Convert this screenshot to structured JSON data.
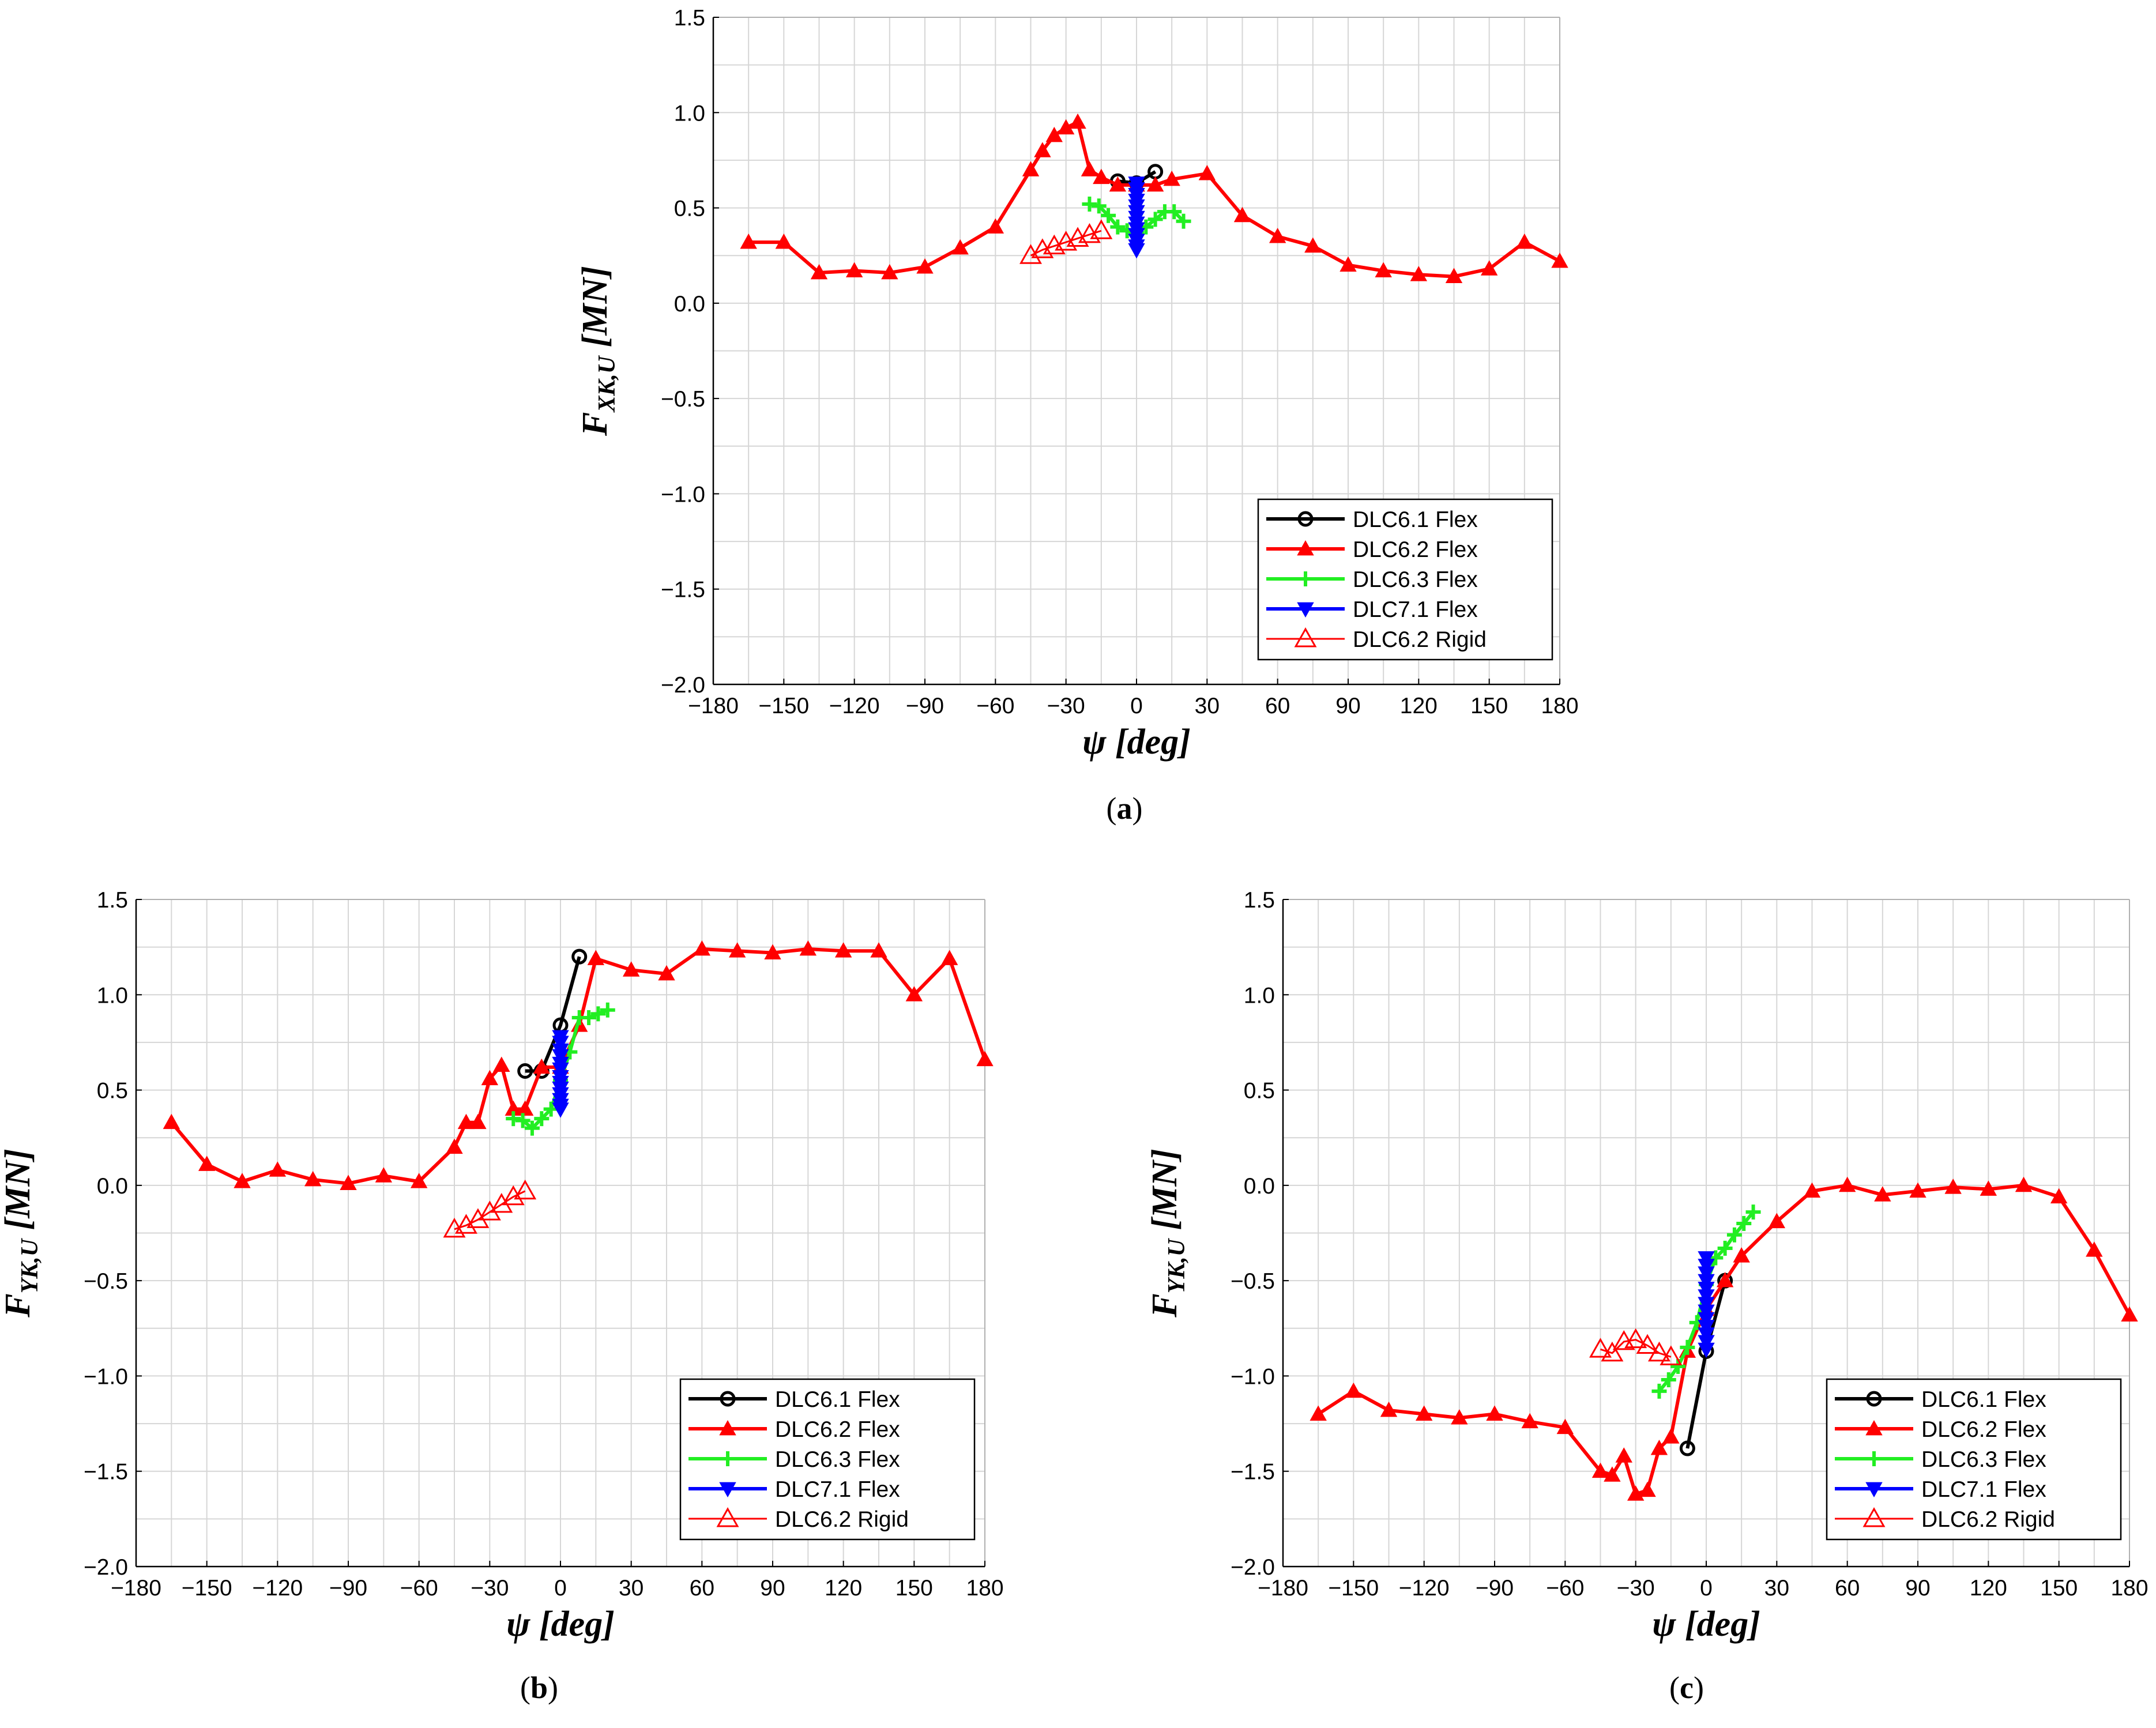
{
  "chart_data": [
    {
      "type": "line",
      "panel_label": "(a)",
      "xlabel": "ψ [deg]",
      "ylabel_main": "F",
      "ylabel_sub": "XK,U",
      "ylabel_unit": "[MN]",
      "xlim": [
        -180,
        180
      ],
      "ylim": [
        -2.0,
        1.5
      ],
      "xticks": [
        -180,
        -150,
        -120,
        -90,
        -60,
        -30,
        0,
        30,
        60,
        90,
        120,
        150,
        180
      ],
      "yticks": [
        -2.0,
        -1.5,
        -1.0,
        -0.5,
        0.0,
        0.5,
        1.0,
        1.5
      ],
      "xtick_labels": [
        "−180",
        "−150",
        "−120",
        "−90",
        "−60",
        "−30",
        "0",
        "30",
        "60",
        "90",
        "120",
        "150",
        "180"
      ],
      "ytick_labels": [
        "−2.0",
        "−1.5",
        "−1.0",
        "−0.5",
        "0.0",
        "0.5",
        "1.0",
        "1.5"
      ],
      "grid": true,
      "legend_position": "bottom-right",
      "series": [
        {
          "name": "DLC6.1 Flex",
          "color": "#000000",
          "marker": "circle",
          "x": [
            -8,
            0,
            8
          ],
          "y": [
            0.64,
            0.63,
            0.69
          ]
        },
        {
          "name": "DLC6.2 Flex",
          "color": "#ff0000",
          "marker": "triangle-up",
          "x": [
            -165,
            -150,
            -135,
            -120,
            -105,
            -90,
            -75,
            -60,
            -45,
            -40,
            -35,
            -30,
            -25,
            -20,
            -15,
            -8,
            0,
            8,
            15,
            30,
            45,
            60,
            75,
            90,
            105,
            120,
            135,
            150,
            165,
            180
          ],
          "y": [
            0.32,
            0.32,
            0.16,
            0.17,
            0.16,
            0.19,
            0.29,
            0.4,
            0.7,
            0.8,
            0.88,
            0.92,
            0.95,
            0.7,
            0.66,
            0.62,
            0.62,
            0.62,
            0.65,
            0.68,
            0.46,
            0.35,
            0.3,
            0.2,
            0.17,
            0.15,
            0.14,
            0.18,
            0.32,
            0.22
          ]
        },
        {
          "name": "DLC6.3 Flex",
          "color": "#22ee22",
          "marker": "plus",
          "x": [
            -20,
            -16,
            -12,
            -8,
            -4,
            0,
            4,
            8,
            12,
            16,
            20
          ],
          "y": [
            0.52,
            0.51,
            0.46,
            0.4,
            0.38,
            0.37,
            0.4,
            0.44,
            0.48,
            0.48,
            0.43
          ]
        },
        {
          "name": "DLC7.1 Flex",
          "color": "#0000ff",
          "marker": "triangle-down",
          "x": [
            0,
            0,
            0,
            0,
            0,
            0,
            0,
            0,
            0,
            0,
            0,
            0,
            0
          ],
          "y": [
            0.63,
            0.6,
            0.57,
            0.54,
            0.51,
            0.48,
            0.45,
            0.42,
            0.39,
            0.36,
            0.33,
            0.3,
            0.28
          ]
        },
        {
          "name": "DLC6.2 Rigid",
          "color": "#ff0000",
          "marker": "triangle-open",
          "x": [
            -45,
            -40,
            -35,
            -30,
            -25,
            -20,
            -15
          ],
          "y": [
            0.25,
            0.28,
            0.3,
            0.32,
            0.34,
            0.36,
            0.38
          ]
        }
      ]
    },
    {
      "type": "line",
      "panel_label": "(b)",
      "xlabel": "ψ [deg]",
      "ylabel_main": "F",
      "ylabel_sub": "YK,U",
      "ylabel_unit": "[MN]",
      "xlim": [
        -180,
        180
      ],
      "ylim": [
        -2.0,
        1.5
      ],
      "xticks": [
        -180,
        -150,
        -120,
        -90,
        -60,
        -30,
        0,
        30,
        60,
        90,
        120,
        150,
        180
      ],
      "yticks": [
        -2.0,
        -1.5,
        -1.0,
        -0.5,
        0.0,
        0.5,
        1.0,
        1.5
      ],
      "xtick_labels": [
        "−180",
        "−150",
        "−120",
        "−90",
        "−60",
        "−30",
        "0",
        "30",
        "60",
        "90",
        "120",
        "150",
        "180"
      ],
      "ytick_labels": [
        "−2.0",
        "−1.5",
        "−1.0",
        "−0.5",
        "0.0",
        "0.5",
        "1.0",
        "1.5"
      ],
      "grid": true,
      "legend_position": "bottom-right",
      "series": [
        {
          "name": "DLC6.1 Flex",
          "color": "#000000",
          "marker": "circle",
          "x": [
            -15,
            -8,
            0,
            8
          ],
          "y": [
            0.6,
            0.6,
            0.84,
            1.2
          ]
        },
        {
          "name": "DLC6.2 Flex",
          "color": "#ff0000",
          "marker": "triangle-up",
          "x": [
            -165,
            -150,
            -135,
            -120,
            -105,
            -90,
            -75,
            -60,
            -45,
            -40,
            -35,
            -30,
            -25,
            -20,
            -15,
            -8,
            0,
            8,
            15,
            30,
            45,
            60,
            75,
            90,
            105,
            120,
            135,
            150,
            165,
            180
          ],
          "y": [
            0.33,
            0.11,
            0.02,
            0.08,
            0.03,
            0.01,
            0.05,
            0.02,
            0.2,
            0.33,
            0.33,
            0.56,
            0.63,
            0.4,
            0.4,
            0.62,
            0.62,
            0.84,
            1.19,
            1.13,
            1.11,
            1.24,
            1.23,
            1.22,
            1.24,
            1.23,
            1.23,
            1.0,
            1.19,
            0.66
          ]
        },
        {
          "name": "DLC6.3 Flex",
          "color": "#22ee22",
          "marker": "plus",
          "x": [
            -20,
            -16,
            -12,
            -8,
            -4,
            0,
            4,
            8,
            12,
            16,
            20
          ],
          "y": [
            0.35,
            0.34,
            0.3,
            0.35,
            0.4,
            0.55,
            0.7,
            0.88,
            0.88,
            0.9,
            0.92
          ]
        },
        {
          "name": "DLC7.1 Flex",
          "color": "#0000ff",
          "marker": "triangle-down",
          "x": [
            0,
            0,
            0,
            0,
            0,
            0,
            0,
            0,
            0,
            0,
            0,
            0,
            0
          ],
          "y": [
            0.78,
            0.75,
            0.71,
            0.68,
            0.64,
            0.61,
            0.57,
            0.54,
            0.51,
            0.48,
            0.45,
            0.42,
            0.4
          ]
        },
        {
          "name": "DLC6.2 Rigid",
          "color": "#ff0000",
          "marker": "triangle-open",
          "x": [
            -45,
            -40,
            -35,
            -30,
            -25,
            -20,
            -15
          ],
          "y": [
            -0.23,
            -0.21,
            -0.18,
            -0.14,
            -0.1,
            -0.06,
            -0.03
          ]
        }
      ]
    },
    {
      "type": "line",
      "panel_label": "(c)",
      "xlabel": "ψ [deg]",
      "ylabel_main": "F",
      "ylabel_sub": "YK,U",
      "ylabel_unit": "[MN]",
      "xlim": [
        -180,
        180
      ],
      "ylim": [
        -2.0,
        1.5
      ],
      "xticks": [
        -180,
        -150,
        -120,
        -90,
        -60,
        -30,
        0,
        30,
        60,
        90,
        120,
        150,
        180
      ],
      "yticks": [
        -2.0,
        -1.5,
        -1.0,
        -0.5,
        0.0,
        0.5,
        1.0,
        1.5
      ],
      "xtick_labels": [
        "−180",
        "−150",
        "−120",
        "−90",
        "−60",
        "−30",
        "0",
        "30",
        "60",
        "90",
        "120",
        "150",
        "180"
      ],
      "ytick_labels": [
        "−2.0",
        "−1.5",
        "−1.0",
        "−0.5",
        "0.0",
        "0.5",
        "1.0",
        "1.5"
      ],
      "grid": true,
      "legend_position": "bottom-right",
      "series": [
        {
          "name": "DLC6.1 Flex",
          "color": "#000000",
          "marker": "circle",
          "x": [
            -8,
            0,
            8
          ],
          "y": [
            -1.38,
            -0.87,
            -0.5
          ]
        },
        {
          "name": "DLC6.2 Flex",
          "color": "#ff0000",
          "marker": "triangle-up",
          "x": [
            -165,
            -150,
            -135,
            -120,
            -105,
            -90,
            -75,
            -60,
            -45,
            -40,
            -35,
            -30,
            -25,
            -20,
            -15,
            -8,
            0,
            8,
            15,
            30,
            45,
            60,
            75,
            90,
            105,
            120,
            135,
            150,
            165,
            180
          ],
          "y": [
            -1.2,
            -1.08,
            -1.18,
            -1.2,
            -1.22,
            -1.2,
            -1.24,
            -1.27,
            -1.5,
            -1.52,
            -1.42,
            -1.62,
            -1.6,
            -1.38,
            -1.32,
            -0.87,
            -0.65,
            -0.5,
            -0.37,
            -0.19,
            -0.03,
            0.0,
            -0.05,
            -0.03,
            -0.01,
            -0.02,
            0.0,
            -0.06,
            -0.34,
            -0.68
          ]
        },
        {
          "name": "DLC6.3 Flex",
          "color": "#22ee22",
          "marker": "plus",
          "x": [
            -20,
            -16,
            -12,
            -8,
            -4,
            0,
            4,
            8,
            12,
            16,
            20
          ],
          "y": [
            -1.08,
            -1.02,
            -0.95,
            -0.85,
            -0.72,
            -0.52,
            -0.38,
            -0.33,
            -0.26,
            -0.2,
            -0.14
          ]
        },
        {
          "name": "DLC7.1 Flex",
          "color": "#0000ff",
          "marker": "triangle-down",
          "x": [
            0,
            0,
            0,
            0,
            0,
            0,
            0,
            0,
            0,
            0,
            0,
            0,
            0
          ],
          "y": [
            -0.38,
            -0.42,
            -0.46,
            -0.5,
            -0.54,
            -0.58,
            -0.62,
            -0.66,
            -0.7,
            -0.74,
            -0.78,
            -0.82,
            -0.86
          ]
        },
        {
          "name": "DLC6.2 Rigid",
          "color": "#ff0000",
          "marker": "triangle-open",
          "x": [
            -45,
            -40,
            -35,
            -30,
            -25,
            -20,
            -15
          ],
          "y": [
            -0.86,
            -0.88,
            -0.82,
            -0.81,
            -0.84,
            -0.88,
            -0.9
          ]
        }
      ]
    }
  ]
}
